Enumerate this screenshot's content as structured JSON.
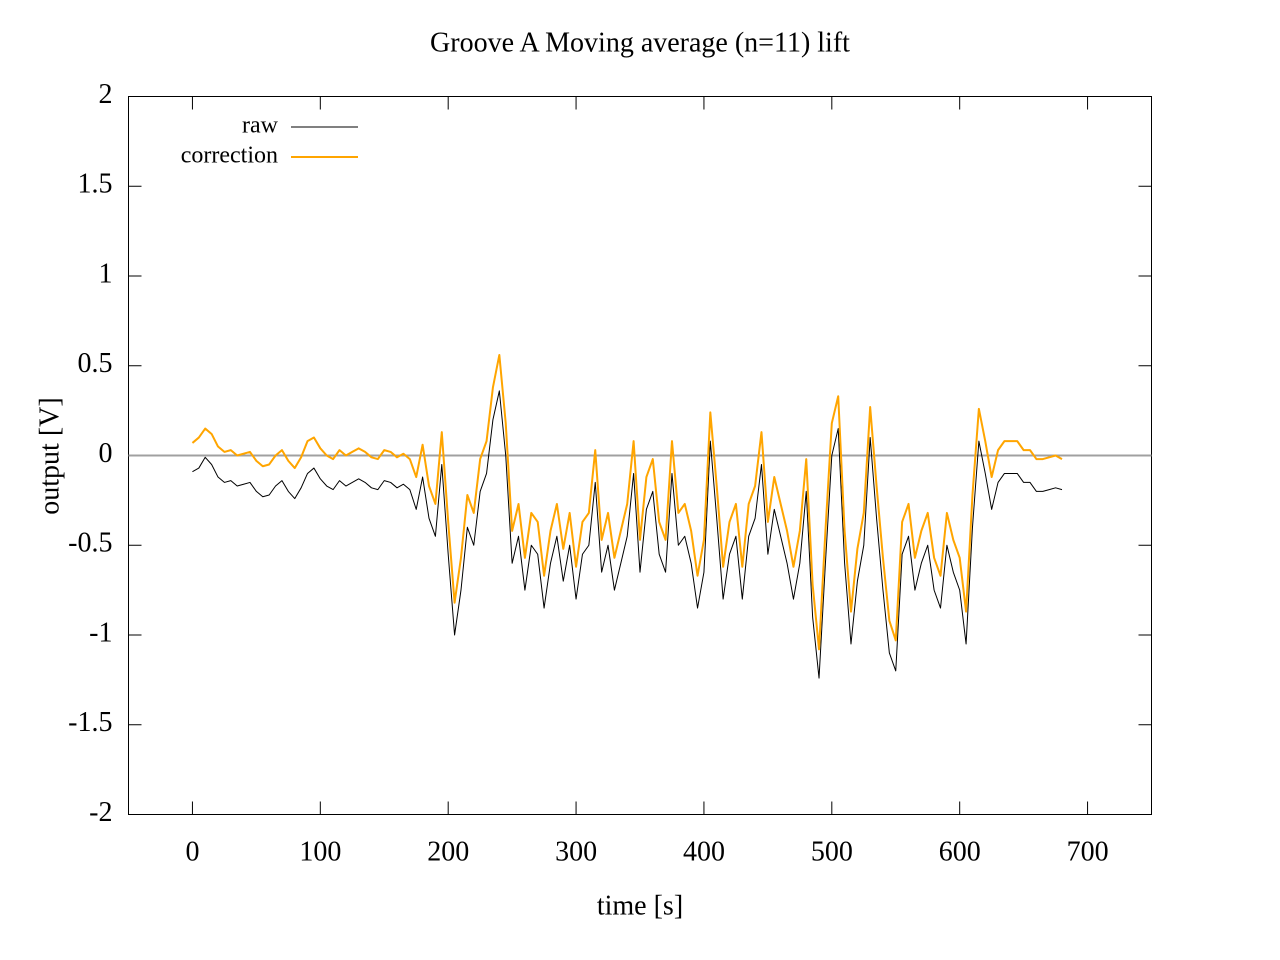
{
  "chart_data": {
    "type": "line",
    "title": "Groove A  Moving average (n=11) lift",
    "x_label": "time [s]",
    "y_label": "output [V]",
    "xlim": [
      -50,
      750
    ],
    "ylim": [
      -2,
      2
    ],
    "xticks": [
      0,
      100,
      200,
      300,
      400,
      500,
      600,
      700
    ],
    "yticks": [
      -2,
      -1.5,
      -1,
      -0.5,
      0,
      0.5,
      1,
      1.5,
      2
    ],
    "zero_axis": true,
    "legend": "top-left",
    "x": [
      0,
      5,
      10,
      15,
      20,
      25,
      30,
      35,
      40,
      45,
      50,
      55,
      60,
      65,
      70,
      75,
      80,
      85,
      90,
      95,
      100,
      105,
      110,
      115,
      120,
      125,
      130,
      135,
      140,
      145,
      150,
      155,
      160,
      165,
      170,
      175,
      180,
      185,
      190,
      195,
      200,
      205,
      210,
      215,
      220,
      225,
      230,
      235,
      240,
      245,
      250,
      255,
      260,
      265,
      270,
      275,
      280,
      285,
      290,
      295,
      300,
      305,
      310,
      315,
      320,
      325,
      330,
      335,
      340,
      345,
      350,
      355,
      360,
      365,
      370,
      375,
      380,
      385,
      390,
      395,
      400,
      405,
      410,
      415,
      420,
      425,
      430,
      435,
      440,
      445,
      450,
      455,
      460,
      465,
      470,
      475,
      480,
      485,
      490,
      495,
      500,
      505,
      510,
      515,
      520,
      525,
      530,
      535,
      540,
      545,
      550,
      555,
      560,
      565,
      570,
      575,
      580,
      585,
      590,
      595,
      600,
      605,
      610,
      615,
      620,
      625,
      630,
      635,
      640,
      645,
      650,
      655,
      660,
      665,
      670,
      675,
      680
    ],
    "series": [
      {
        "name": "raw",
        "color": "#000000",
        "width": 1,
        "values": [
          -0.09,
          -0.07,
          -0.01,
          -0.05,
          -0.12,
          -0.15,
          -0.14,
          -0.17,
          -0.16,
          -0.15,
          -0.2,
          -0.23,
          -0.22,
          -0.17,
          -0.14,
          -0.2,
          -0.24,
          -0.18,
          -0.1,
          -0.07,
          -0.13,
          -0.17,
          -0.19,
          -0.14,
          -0.17,
          -0.15,
          -0.13,
          -0.15,
          -0.18,
          -0.19,
          -0.14,
          -0.15,
          -0.18,
          -0.16,
          -0.19,
          -0.3,
          -0.12,
          -0.35,
          -0.45,
          -0.05,
          -0.55,
          -1.0,
          -0.75,
          -0.4,
          -0.5,
          -0.2,
          -0.1,
          0.2,
          0.36,
          0.0,
          -0.6,
          -0.45,
          -0.75,
          -0.5,
          -0.55,
          -0.85,
          -0.6,
          -0.45,
          -0.7,
          -0.5,
          -0.8,
          -0.55,
          -0.5,
          -0.15,
          -0.65,
          -0.5,
          -0.75,
          -0.6,
          -0.45,
          -0.1,
          -0.65,
          -0.3,
          -0.2,
          -0.55,
          -0.65,
          -0.1,
          -0.5,
          -0.45,
          -0.6,
          -0.85,
          -0.65,
          0.08,
          -0.35,
          -0.8,
          -0.55,
          -0.45,
          -0.8,
          -0.45,
          -0.35,
          -0.05,
          -0.55,
          -0.3,
          -0.45,
          -0.6,
          -0.8,
          -0.6,
          -0.2,
          -0.9,
          -1.24,
          -0.6,
          0.0,
          0.15,
          -0.6,
          -1.05,
          -0.7,
          -0.5,
          0.1,
          -0.35,
          -0.75,
          -1.1,
          -1.2,
          -0.55,
          -0.45,
          -0.75,
          -0.6,
          -0.5,
          -0.75,
          -0.85,
          -0.5,
          -0.65,
          -0.75,
          -1.05,
          -0.4,
          0.08,
          -0.1,
          -0.3,
          -0.15,
          -0.1,
          -0.1,
          -0.1,
          -0.15,
          -0.15,
          -0.2,
          -0.2,
          -0.19,
          -0.18,
          -0.19
        ]
      },
      {
        "name": "correction",
        "color": "#ffa500",
        "width": 2,
        "values": [
          0.07,
          0.1,
          0.15,
          0.12,
          0.05,
          0.02,
          0.03,
          0.0,
          0.01,
          0.02,
          -0.03,
          -0.06,
          -0.05,
          0.0,
          0.03,
          -0.03,
          -0.07,
          -0.01,
          0.08,
          0.1,
          0.04,
          0.0,
          -0.02,
          0.03,
          0.0,
          0.02,
          0.04,
          0.02,
          -0.01,
          -0.02,
          0.03,
          0.02,
          -0.01,
          0.01,
          -0.02,
          -0.12,
          0.06,
          -0.17,
          -0.27,
          0.13,
          -0.37,
          -0.82,
          -0.57,
          -0.22,
          -0.32,
          -0.02,
          0.08,
          0.38,
          0.56,
          0.18,
          -0.42,
          -0.27,
          -0.57,
          -0.32,
          -0.37,
          -0.67,
          -0.42,
          -0.27,
          -0.52,
          -0.32,
          -0.62,
          -0.37,
          -0.32,
          0.03,
          -0.47,
          -0.32,
          -0.57,
          -0.42,
          -0.27,
          0.08,
          -0.47,
          -0.12,
          -0.02,
          -0.37,
          -0.47,
          0.08,
          -0.32,
          -0.27,
          -0.42,
          -0.67,
          -0.47,
          0.24,
          -0.17,
          -0.62,
          -0.37,
          -0.27,
          -0.62,
          -0.27,
          -0.17,
          0.13,
          -0.37,
          -0.12,
          -0.27,
          -0.42,
          -0.62,
          -0.42,
          -0.02,
          -0.72,
          -1.08,
          -0.42,
          0.18,
          0.33,
          -0.42,
          -0.87,
          -0.52,
          -0.32,
          0.27,
          -0.17,
          -0.57,
          -0.92,
          -1.03,
          -0.37,
          -0.27,
          -0.57,
          -0.42,
          -0.32,
          -0.57,
          -0.67,
          -0.32,
          -0.47,
          -0.57,
          -0.87,
          -0.22,
          0.26,
          0.08,
          -0.12,
          0.03,
          0.08,
          0.08,
          0.08,
          0.03,
          0.03,
          -0.02,
          -0.02,
          -0.01,
          0.0,
          -0.02
        ]
      }
    ]
  }
}
